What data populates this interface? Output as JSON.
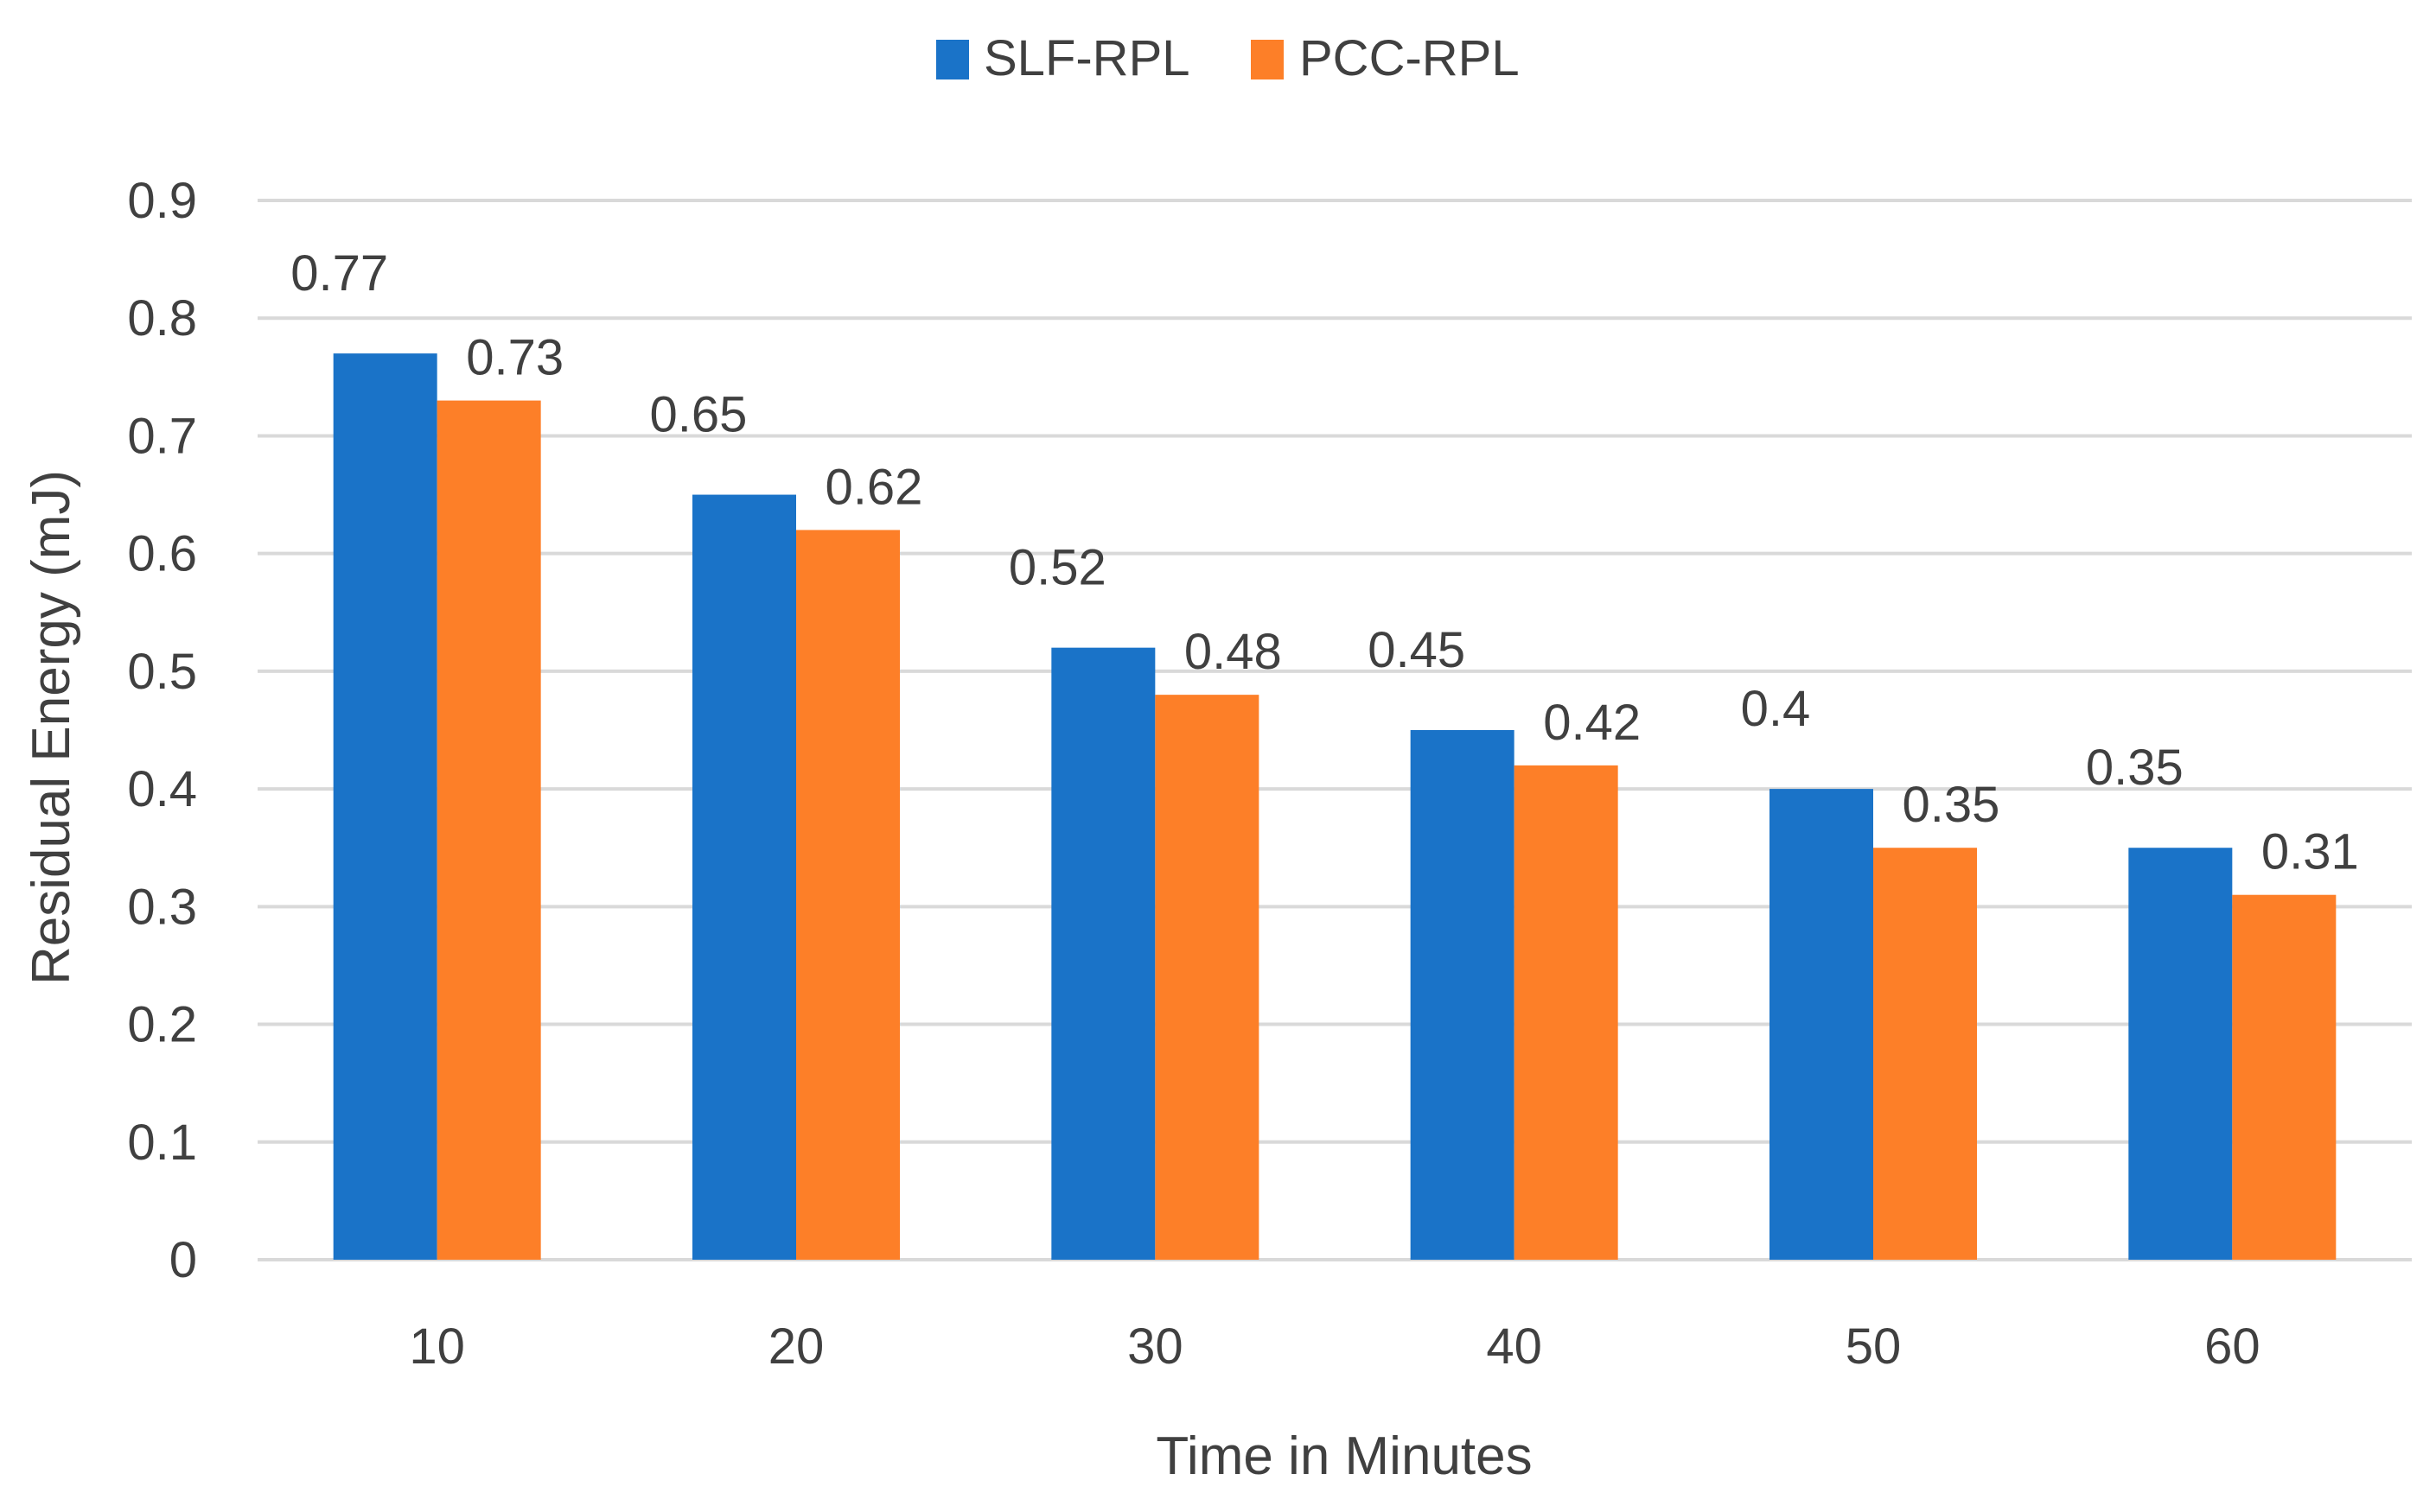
{
  "chart_data": {
    "type": "bar",
    "title": "",
    "categories": [
      "10",
      "20",
      "30",
      "40",
      "50",
      "60"
    ],
    "series": [
      {
        "name": "SLF-RPL",
        "color": "#1a73c8",
        "values": [
          0.77,
          0.65,
          0.52,
          0.45,
          0.4,
          0.35
        ],
        "labels": [
          "0.77",
          "0.65",
          "0.52",
          "0.45",
          "0.4",
          "0.35"
        ]
      },
      {
        "name": "PCC-RPL",
        "color": "#fd7f28",
        "values": [
          0.73,
          0.62,
          0.48,
          0.42,
          0.35,
          0.31
        ],
        "labels": [
          "0.73",
          "0.62",
          "0.48",
          "0.42",
          "0.35",
          "0.31"
        ]
      }
    ],
    "xlabel": "Time in Minutes",
    "ylabel": "Residual Energy (mJ)",
    "ylim": [
      0,
      0.9
    ],
    "yticks": [
      0,
      0.1,
      0.2,
      0.3,
      0.4,
      0.5,
      0.6,
      0.7,
      0.8,
      0.9
    ],
    "ytick_labels": [
      "0",
      "0.1",
      "0.2",
      "0.3",
      "0.4",
      "0.5",
      "0.6",
      "0.7",
      "0.8",
      "0.9"
    ],
    "grid": true,
    "legend_position": "top-center"
  }
}
